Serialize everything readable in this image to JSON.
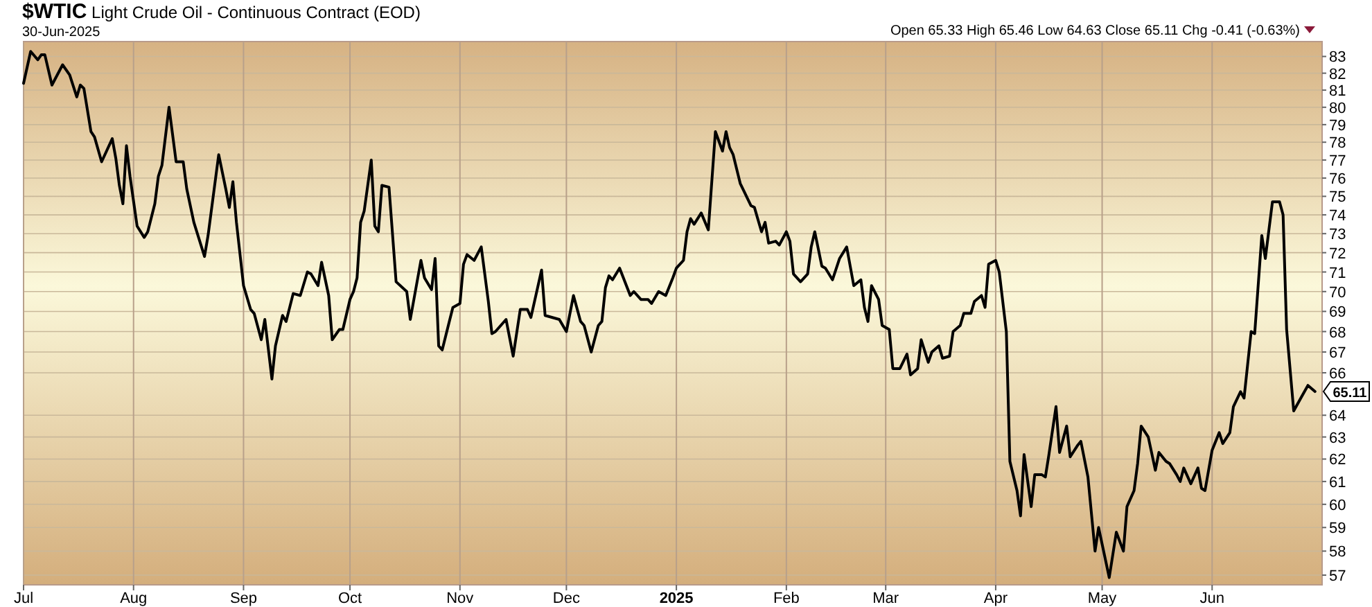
{
  "chart_data": {
    "type": "line",
    "title": "$WTIC Light Crude Oil - Continuous Contract (EOD)",
    "subtitle": "30-Jun-2025",
    "annotations": [
      "Open 65.33  High 65.46  Low 64.63  Close 65.11  Chg -0.41 (-0.63%)",
      {
        "text": "65.11",
        "x": "2025-06-30",
        "y": 65.11
      }
    ],
    "x": [
      "2024-07-01",
      "2024-07-03",
      "2024-07-05",
      "2024-07-06",
      "2024-07-07",
      "2024-07-09",
      "2024-07-12",
      "2024-07-14",
      "2024-07-16",
      "2024-07-17",
      "2024-07-18",
      "2024-07-20",
      "2024-07-21",
      "2024-07-23",
      "2024-07-26",
      "2024-07-27",
      "2024-07-28",
      "2024-07-29",
      "2024-07-30",
      "2024-07-31",
      "2024-08-02",
      "2024-08-04",
      "2024-08-05",
      "2024-08-07",
      "2024-08-08",
      "2024-08-09",
      "2024-08-11",
      "2024-08-13",
      "2024-08-15",
      "2024-08-16",
      "2024-08-18",
      "2024-08-21",
      "2024-08-22",
      "2024-08-25",
      "2024-08-27",
      "2024-08-28",
      "2024-08-29",
      "2024-08-30",
      "2024-09-01",
      "2024-09-03",
      "2024-09-04",
      "2024-09-06",
      "2024-09-07",
      "2024-09-09",
      "2024-09-10",
      "2024-09-12",
      "2024-09-13",
      "2024-09-15",
      "2024-09-17",
      "2024-09-19",
      "2024-09-20",
      "2024-09-22",
      "2024-09-23",
      "2024-09-25",
      "2024-09-26",
      "2024-09-28",
      "2024-09-29",
      "2024-10-01",
      "2024-10-02",
      "2024-10-03",
      "2024-10-04",
      "2024-10-05",
      "2024-10-07",
      "2024-10-08",
      "2024-10-09",
      "2024-10-10",
      "2024-10-12",
      "2024-10-14",
      "2024-10-17",
      "2024-10-18",
      "2024-10-21",
      "2024-10-22",
      "2024-10-24",
      "2024-10-25",
      "2024-10-26",
      "2024-10-27",
      "2024-10-29",
      "2024-10-30",
      "2024-11-01",
      "2024-11-02",
      "2024-11-03",
      "2024-11-05",
      "2024-11-07",
      "2024-11-09",
      "2024-11-10",
      "2024-11-11",
      "2024-11-14",
      "2024-11-16",
      "2024-11-18",
      "2024-11-20",
      "2024-11-21",
      "2024-11-24",
      "2024-11-25",
      "2024-11-29",
      "2024-12-01",
      "2024-12-03",
      "2024-12-05",
      "2024-12-06",
      "2024-12-08",
      "2024-12-10",
      "2024-12-11",
      "2024-12-12",
      "2024-12-13",
      "2024-12-14",
      "2024-12-16",
      "2024-12-19",
      "2024-12-20",
      "2024-12-22",
      "2024-12-24",
      "2024-12-25",
      "2024-12-27",
      "2024-12-29",
      "2024-12-31",
      "2025-01-01",
      "2025-01-03",
      "2025-01-04",
      "2025-01-05",
      "2025-01-06",
      "2025-01-08",
      "2025-01-10",
      "2025-01-12",
      "2025-01-14",
      "2025-01-15",
      "2025-01-16",
      "2025-01-17",
      "2025-01-19",
      "2025-01-20",
      "2025-01-22",
      "2025-01-23",
      "2025-01-25",
      "2025-01-26",
      "2025-01-27",
      "2025-01-29",
      "2025-01-30",
      "2025-02-01",
      "2025-02-02",
      "2025-02-03",
      "2025-02-05",
      "2025-02-07",
      "2025-02-08",
      "2025-02-09",
      "2025-02-11",
      "2025-02-12",
      "2025-02-14",
      "2025-02-16",
      "2025-02-18",
      "2025-02-20",
      "2025-02-22",
      "2025-02-23",
      "2025-02-24",
      "2025-02-25",
      "2025-02-27",
      "2025-02-28",
      "2025-03-02",
      "2025-03-03",
      "2025-03-05",
      "2025-03-07",
      "2025-03-08",
      "2025-03-10",
      "2025-03-11",
      "2025-03-13",
      "2025-03-14",
      "2025-03-16",
      "2025-03-17",
      "2025-03-19",
      "2025-03-20",
      "2025-03-22",
      "2025-03-23",
      "2025-03-25",
      "2025-03-26",
      "2025-03-28",
      "2025-03-29",
      "2025-03-30",
      "2025-04-01",
      "2025-04-02",
      "2025-04-04",
      "2025-04-05",
      "2025-04-07",
      "2025-04-08",
      "2025-04-09",
      "2025-04-11",
      "2025-04-12",
      "2025-04-14",
      "2025-04-15",
      "2025-04-16",
      "2025-04-18",
      "2025-04-19",
      "2025-04-21",
      "2025-04-22",
      "2025-04-24",
      "2025-04-25",
      "2025-04-27",
      "2025-04-29",
      "2025-04-30",
      "2025-05-03",
      "2025-05-05",
      "2025-05-07",
      "2025-05-08",
      "2025-05-10",
      "2025-05-11",
      "2025-05-12",
      "2025-05-14",
      "2025-05-16",
      "2025-05-17",
      "2025-05-19",
      "2025-05-20",
      "2025-05-22",
      "2025-05-23",
      "2025-05-24",
      "2025-05-26",
      "2025-05-28",
      "2025-05-29",
      "2025-05-30",
      "2025-06-01",
      "2025-06-03",
      "2025-06-04",
      "2025-06-06",
      "2025-06-07",
      "2025-06-09",
      "2025-06-10",
      "2025-06-12",
      "2025-06-13",
      "2025-06-15",
      "2025-06-16",
      "2025-06-18",
      "2025-06-20",
      "2025-06-21",
      "2025-06-22",
      "2025-06-24",
      "2025-06-26",
      "2025-06-28",
      "2025-06-30"
    ],
    "series": [
      {
        "color": "#000000",
        "values": [
          81.4,
          83.3,
          82.8,
          83.1,
          83.1,
          81.3,
          82.5,
          81.9,
          80.6,
          81.3,
          81.1,
          78.6,
          78.3,
          76.9,
          78.2,
          77.1,
          75.6,
          74.6,
          77.8,
          76.1,
          73.4,
          72.8,
          73.1,
          74.6,
          76.1,
          76.7,
          80.0,
          76.9,
          76.9,
          75.4,
          73.6,
          71.8,
          72.9,
          77.3,
          75.4,
          74.4,
          75.8,
          73.6,
          70.3,
          69.1,
          68.9,
          67.6,
          68.6,
          65.7,
          67.3,
          68.8,
          68.5,
          69.9,
          69.8,
          71.0,
          70.9,
          70.3,
          71.5,
          69.8,
          67.6,
          68.1,
          68.1,
          69.6,
          70.0,
          70.7,
          73.6,
          74.2,
          77.0,
          73.4,
          73.1,
          75.6,
          75.5,
          70.5,
          70.0,
          68.6,
          71.6,
          70.7,
          70.1,
          71.7,
          67.3,
          67.1,
          68.5,
          69.2,
          69.4,
          71.4,
          71.9,
          71.6,
          72.3,
          69.5,
          67.9,
          68.0,
          68.6,
          66.8,
          69.1,
          69.1,
          68.7,
          71.1,
          68.8,
          68.6,
          68.0,
          69.8,
          68.5,
          68.3,
          67.0,
          68.3,
          68.5,
          70.2,
          70.8,
          70.6,
          71.2,
          69.8,
          70.0,
          69.6,
          69.6,
          69.4,
          70.0,
          69.8,
          70.7,
          71.2,
          71.6,
          73.1,
          73.8,
          73.5,
          74.1,
          73.2,
          78.6,
          77.5,
          78.6,
          77.7,
          77.3,
          75.7,
          75.3,
          74.5,
          74.4,
          73.1,
          73.6,
          72.5,
          72.6,
          72.4,
          73.1,
          72.6,
          70.9,
          70.5,
          70.9,
          72.3,
          73.1,
          71.3,
          71.2,
          70.6,
          71.7,
          72.3,
          70.3,
          70.6,
          69.2,
          68.5,
          70.3,
          69.6,
          68.3,
          68.1,
          66.2,
          66.2,
          66.9,
          65.9,
          66.2,
          67.6,
          66.5,
          67.0,
          67.3,
          66.7,
          66.8,
          68.0,
          68.3,
          68.9,
          68.9,
          69.5,
          69.8,
          69.2,
          71.4,
          71.6,
          71.0,
          68.0,
          61.9,
          60.6,
          59.5,
          62.2,
          59.9,
          61.3,
          61.3,
          61.2,
          62.2,
          64.4,
          62.3,
          63.5,
          62.1,
          62.6,
          62.8,
          61.2,
          58.0,
          59.0,
          56.9,
          58.8,
          58.0,
          59.9,
          60.6,
          61.8,
          63.5,
          63.0,
          61.5,
          62.3,
          61.9,
          61.8,
          61.3,
          61.0,
          61.6,
          60.9,
          61.6,
          60.7,
          60.6,
          62.4,
          63.2,
          62.7,
          63.2,
          64.4,
          65.1,
          64.8,
          68.0,
          67.9,
          72.9,
          71.7,
          74.7,
          74.7,
          74.0,
          68.1,
          64.2,
          64.8,
          65.4,
          65.11
        ]
      }
    ],
    "xlim": [
      "2024-07-01",
      "2025-07-02"
    ],
    "xticks": [
      {
        "value": "2024-07-01",
        "label": "Jul"
      },
      {
        "value": "2024-08-01",
        "label": "Aug"
      },
      {
        "value": "2024-09-01",
        "label": "Sep"
      },
      {
        "value": "2024-10-01",
        "label": "Oct"
      },
      {
        "value": "2024-11-01",
        "label": "Nov"
      },
      {
        "value": "2024-12-01",
        "label": "Dec"
      },
      {
        "value": "2025-01-01",
        "label": "2025"
      },
      {
        "value": "2025-02-01",
        "label": "Feb"
      },
      {
        "value": "2025-03-01",
        "label": "Mar"
      },
      {
        "value": "2025-04-01",
        "label": "Apr"
      },
      {
        "value": "2025-05-01",
        "label": "May"
      },
      {
        "value": "2025-06-01",
        "label": "Jun"
      }
    ],
    "ylim": [
      56.6,
      83.9
    ],
    "yticks": [
      57,
      58,
      59,
      60,
      61,
      62,
      63,
      64,
      66,
      67,
      68,
      69,
      70,
      71,
      72,
      73,
      74,
      75,
      76,
      77,
      78,
      79,
      80,
      81,
      82,
      83
    ],
    "log": "y",
    "grid": true,
    "marker": "none",
    "line_style": "solid"
  }
}
